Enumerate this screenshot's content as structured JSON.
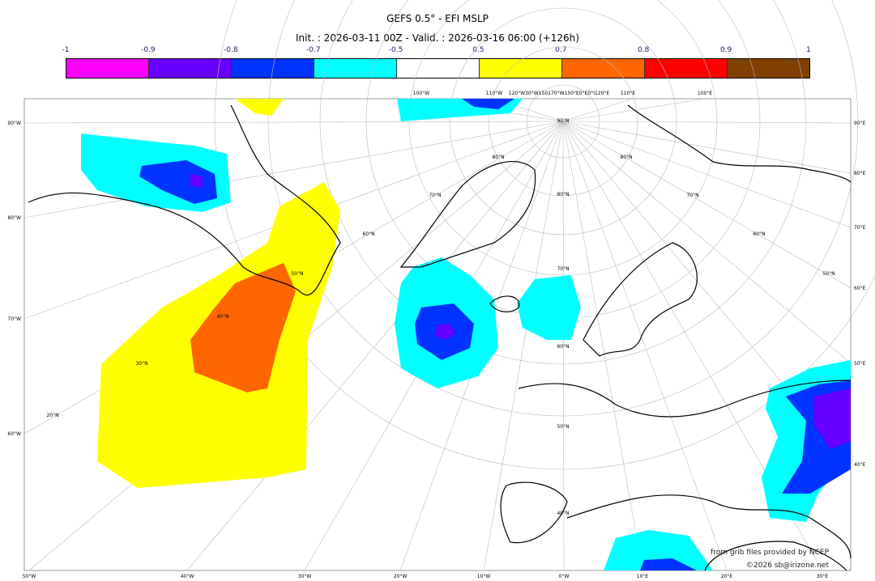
{
  "title": "GEFS 0.5° - EFI MSLP",
  "subtitle": "Init. : 2026-03-11 00Z - Valid. : 2026-03-16 06:00 (+126h)",
  "colorbar": {
    "ticks": [
      "-1",
      "-0.9",
      "-0.8",
      "-0.7",
      "-0.5",
      "0.5",
      "0.7",
      "0.8",
      "0.9",
      "1"
    ],
    "colors": [
      "#ff00ff",
      "#6600ff",
      "#0033ff",
      "#00ffff",
      "#ffffff",
      "#ffff00",
      "#ff6600",
      "#ff0000",
      "#804000"
    ]
  },
  "map": {
    "top_labels": [
      "100°W",
      "110°W",
      "120°W30°W150170°W150°E0°E0°I120°E",
      "110°E",
      "100°E"
    ],
    "left_labels": [
      "90°W",
      "80°W",
      "70°W",
      "60°W"
    ],
    "right_labels": [
      "90°E",
      "80°E",
      "70°E",
      "60°E",
      "50°E",
      "40°E"
    ],
    "bottom_labels": [
      "50°W",
      "40°W",
      "30°W",
      "20°W",
      "10°W",
      "0°W",
      "10°E",
      "20°E",
      "30°E"
    ],
    "lat_labels": [
      "90°N",
      "80°N",
      "80°N",
      "80°N",
      "70°N",
      "70°N",
      "70°N",
      "60°N",
      "60°N",
      "60°N",
      "50°N",
      "50°N",
      "50°N",
      "40°N",
      "40°N",
      "30°N",
      "20°N"
    ]
  },
  "credits": {
    "source": "from grib files provided by NCEP",
    "copyright": "©2026 sb@irizone.net"
  }
}
